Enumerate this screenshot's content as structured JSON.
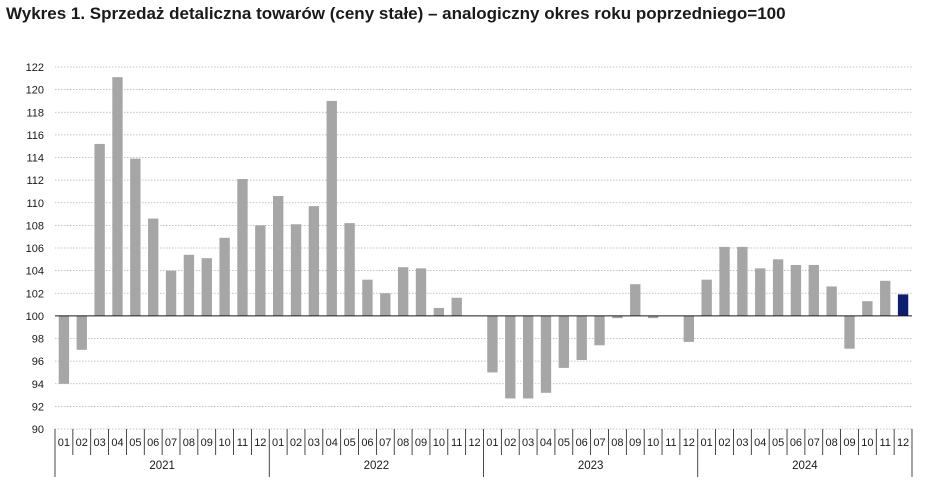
{
  "chart_data": {
    "type": "bar",
    "title": "Wykres 1. Sprzedaż detaliczna towarów (ceny stałe) – analogiczny okres roku poprzedniego=100",
    "xlabel": "",
    "ylabel": "",
    "ylim": [
      90,
      122
    ],
    "baseline": 100,
    "yticks": [
      90,
      92,
      94,
      96,
      98,
      100,
      102,
      104,
      106,
      108,
      110,
      112,
      114,
      116,
      118,
      120,
      122
    ],
    "grid": true,
    "years": [
      "2021",
      "2022",
      "2023",
      "2024"
    ],
    "months": [
      "01",
      "02",
      "03",
      "04",
      "05",
      "06",
      "07",
      "08",
      "09",
      "10",
      "11",
      "12"
    ],
    "values": [
      94.0,
      97.0,
      115.2,
      121.1,
      113.9,
      108.6,
      104.0,
      105.4,
      105.1,
      106.9,
      112.1,
      108.0,
      110.6,
      108.1,
      109.7,
      119.0,
      108.2,
      103.2,
      102.0,
      104.3,
      104.2,
      100.7,
      101.6,
      100.0,
      95.0,
      92.7,
      92.7,
      93.2,
      95.4,
      96.1,
      97.4,
      99.8,
      102.8,
      99.8,
      100.0,
      97.7,
      103.2,
      106.1,
      106.1,
      104.2,
      105.0,
      104.5,
      104.5,
      102.6,
      97.1,
      101.3,
      103.1,
      101.9
    ],
    "colors": {
      "bar": "#a6a6a6",
      "highlight": "#0d1e6e",
      "grid": "#b0b0b0",
      "axis": "#1a1a1a"
    },
    "highlight_index": 47
  }
}
